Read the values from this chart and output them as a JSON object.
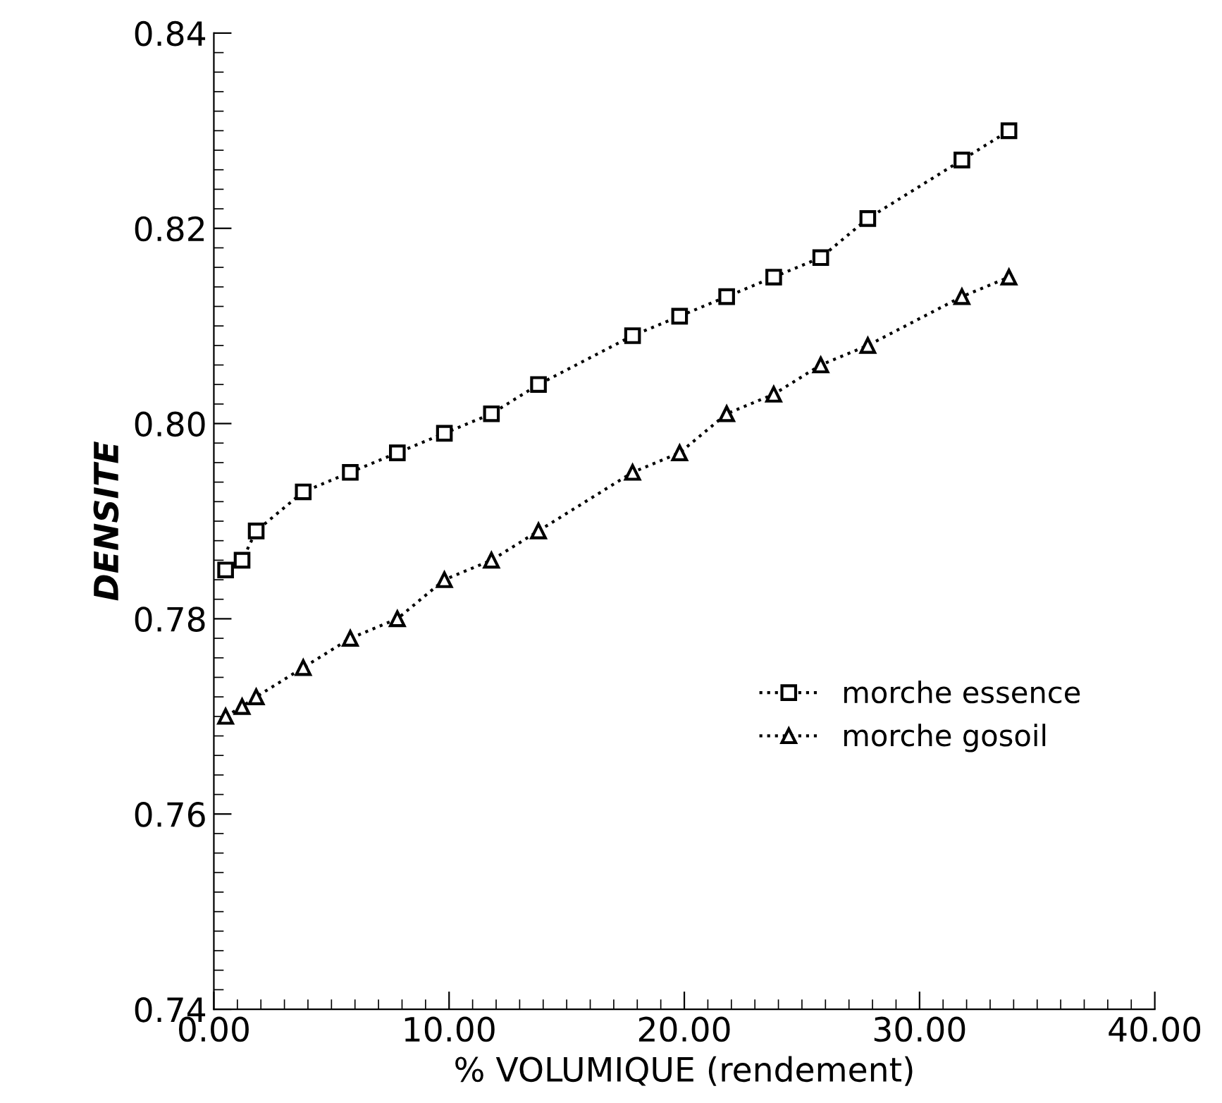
{
  "chart_data": {
    "type": "line",
    "xlabel": "% VOLUMIQUE (rendement)",
    "ylabel": "DENSITE",
    "xlim": [
      0,
      40
    ],
    "xticks": [
      {
        "value": 0,
        "label": "0.00"
      },
      {
        "value": 10,
        "label": "10.00"
      },
      {
        "value": 20,
        "label": "20.00"
      },
      {
        "value": 30,
        "label": "30.00"
      },
      {
        "value": 40,
        "label": "40.00"
      }
    ],
    "ylim": [
      0.74,
      0.84
    ],
    "yticks": [
      0.74,
      0.76,
      0.78,
      {
        "value": 0.8,
        "label": "0.80"
      },
      0.82,
      0.84
    ],
    "grid": false,
    "legend": "center right",
    "line_style": "dotted",
    "series": [
      {
        "name": "morche essence",
        "color": "#000000",
        "marker": "square",
        "x": [
          0.5,
          1.2,
          1.8,
          3.8,
          5.8,
          7.8,
          9.8,
          11.8,
          13.8,
          17.8,
          19.8,
          21.8,
          23.8,
          25.8,
          27.8,
          31.8,
          33.8
        ],
        "values": [
          0.785,
          0.786,
          0.789,
          0.793,
          0.795,
          0.797,
          0.799,
          0.801,
          0.804,
          0.809,
          0.811,
          0.813,
          0.815,
          0.817,
          0.821,
          0.827,
          0.83
        ]
      },
      {
        "name": "morche gosoil",
        "color": "#000000",
        "marker": "triangle",
        "x": [
          0.5,
          1.2,
          1.8,
          3.8,
          5.8,
          7.8,
          9.8,
          11.8,
          13.8,
          17.8,
          19.8,
          21.8,
          23.8,
          25.8,
          27.8,
          31.8,
          33.8
        ],
        "values": [
          0.77,
          0.771,
          0.772,
          0.775,
          0.778,
          0.78,
          0.784,
          0.786,
          0.789,
          0.795,
          0.797,
          0.801,
          0.803,
          0.806,
          0.808,
          0.813,
          0.815
        ]
      }
    ]
  }
}
